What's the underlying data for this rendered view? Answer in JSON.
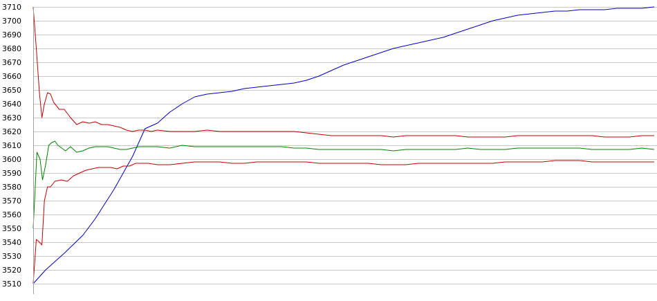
{
  "chart_data": {
    "type": "line",
    "title": "",
    "xlabel": "",
    "ylabel": "",
    "ylim": [
      3510,
      3710
    ],
    "yticks": [
      3510,
      3520,
      3530,
      3540,
      3550,
      3560,
      3570,
      3580,
      3590,
      3600,
      3610,
      3620,
      3630,
      3640,
      3650,
      3660,
      3670,
      3680,
      3690,
      3700,
      3710
    ],
    "xlim": [
      0,
      100
    ],
    "grid": true,
    "legend": "none",
    "series": [
      {
        "color": "#0000c0",
        "x": [
          0,
          2,
          5,
          8,
          10,
          13,
          16,
          18,
          20,
          22,
          24,
          26,
          28,
          30,
          32,
          34,
          36,
          38,
          40,
          42,
          44,
          46,
          48,
          50,
          52,
          54,
          56,
          58,
          60,
          62,
          64,
          66,
          68,
          70,
          72,
          74,
          76,
          78,
          80,
          82,
          84,
          86,
          88,
          90,
          92,
          94,
          96,
          98,
          100
        ],
        "y": [
          3510,
          3520,
          3532,
          3545,
          3557,
          3578,
          3602,
          3622,
          3626,
          3634,
          3640,
          3645,
          3647,
          3648,
          3649,
          3651,
          3652,
          3653,
          3654,
          3655,
          3657,
          3660,
          3664,
          3668,
          3671,
          3674,
          3677,
          3680,
          3682,
          3684,
          3686,
          3688,
          3691,
          3694,
          3697,
          3700,
          3702,
          3704,
          3705,
          3706,
          3707,
          3707,
          3708,
          3708,
          3708,
          3709,
          3709,
          3709,
          3710
        ]
      },
      {
        "color": "#c00000",
        "x": [
          0,
          0.5,
          1,
          1.4,
          1.8,
          2.3,
          2.8,
          3.3,
          4.2,
          5,
          6,
          7,
          8,
          9,
          10,
          11,
          12,
          13,
          14,
          15,
          16,
          17,
          18,
          19,
          20,
          22,
          24,
          26,
          28,
          30,
          32,
          34,
          36,
          38,
          40,
          42,
          44,
          46,
          48,
          50,
          52,
          54,
          56,
          58,
          60,
          62,
          64,
          66,
          68,
          70,
          72,
          74,
          76,
          78,
          80,
          82,
          84,
          86,
          88,
          90,
          92,
          94,
          96,
          98,
          100
        ],
        "y": [
          3710,
          3680,
          3648,
          3630,
          3640,
          3648,
          3647,
          3641,
          3636,
          3636,
          3630,
          3625,
          3627,
          3626,
          3627,
          3625,
          3625,
          3624,
          3623,
          3621,
          3620,
          3621,
          3621,
          3620,
          3621,
          3620,
          3620,
          3620,
          3621,
          3620,
          3620,
          3620,
          3620,
          3620,
          3620,
          3620,
          3619,
          3618,
          3617,
          3617,
          3617,
          3617,
          3617,
          3616,
          3617,
          3617,
          3617,
          3617,
          3617,
          3616,
          3616,
          3616,
          3616,
          3617,
          3617,
          3617,
          3617,
          3617,
          3617,
          3617,
          3616,
          3616,
          3616,
          3617,
          3617
        ]
      },
      {
        "color": "#008000",
        "x": [
          0,
          0.6,
          1.1,
          1.5,
          2,
          2.5,
          3,
          3.5,
          4,
          4.6,
          5.2,
          6,
          7,
          8,
          9,
          10,
          11,
          12,
          13,
          14,
          15,
          16,
          17,
          18,
          20,
          22,
          24,
          26,
          28,
          30,
          32,
          34,
          36,
          38,
          40,
          42,
          44,
          46,
          48,
          50,
          52,
          54,
          56,
          58,
          60,
          62,
          64,
          66,
          68,
          70,
          72,
          74,
          76,
          78,
          80,
          82,
          84,
          86,
          88,
          90,
          92,
          94,
          96,
          98,
          100
        ],
        "y": [
          3550,
          3605,
          3600,
          3585,
          3596,
          3610,
          3612,
          3613,
          3610,
          3608,
          3606,
          3609,
          3605,
          3606,
          3608,
          3609,
          3609,
          3609,
          3608,
          3607,
          3607,
          3608,
          3609,
          3609,
          3609,
          3608,
          3610,
          3609,
          3609,
          3609,
          3609,
          3609,
          3609,
          3609,
          3609,
          3608,
          3608,
          3607,
          3607,
          3607,
          3607,
          3607,
          3607,
          3606,
          3607,
          3607,
          3607,
          3607,
          3607,
          3608,
          3607,
          3607,
          3607,
          3608,
          3608,
          3608,
          3608,
          3608,
          3608,
          3607,
          3607,
          3607,
          3607,
          3608,
          3607
        ]
      },
      {
        "color": "#c00000",
        "x": [
          0,
          0.5,
          1,
          1.4,
          1.8,
          2.3,
          2.8,
          3.5,
          4.5,
          5.5,
          6.5,
          7.5,
          8.5,
          9.5,
          10.5,
          11.5,
          12.5,
          13.5,
          14.5,
          15.5,
          16.5,
          17.5,
          18.5,
          20,
          22,
          24,
          26,
          28,
          30,
          32,
          34,
          36,
          38,
          40,
          42,
          44,
          46,
          48,
          50,
          52,
          54,
          56,
          58,
          60,
          62,
          64,
          66,
          68,
          70,
          72,
          74,
          76,
          78,
          80,
          82,
          84,
          86,
          88,
          90,
          92,
          94,
          96,
          98,
          100
        ],
        "y": [
          3510,
          3542,
          3540,
          3538,
          3570,
          3580,
          3580,
          3584,
          3585,
          3584,
          3588,
          3590,
          3592,
          3593,
          3594,
          3594,
          3594,
          3593,
          3595,
          3595,
          3597,
          3597,
          3597,
          3596,
          3596,
          3597,
          3598,
          3598,
          3598,
          3597,
          3597,
          3598,
          3598,
          3598,
          3598,
          3598,
          3597,
          3597,
          3597,
          3597,
          3597,
          3596,
          3596,
          3596,
          3597,
          3597,
          3597,
          3597,
          3597,
          3597,
          3597,
          3598,
          3598,
          3598,
          3598,
          3599,
          3599,
          3599,
          3598,
          3598,
          3598,
          3598,
          3598,
          3598
        ]
      }
    ]
  }
}
